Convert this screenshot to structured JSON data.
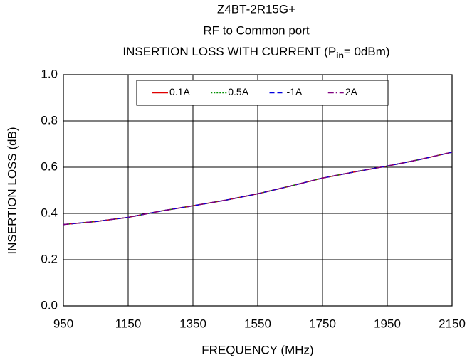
{
  "chart_data": {
    "type": "line",
    "title": [
      "Z4BT-2R15G+",
      "RF to Common port",
      [
        "INSERTION LOSS WITH CURRENT (P",
        "in",
        "= 0dBm)"
      ]
    ],
    "x_label": "FREQUENCY (MHz)",
    "y_label": "INSERTION LOSS (dB)",
    "x": [
      950,
      1050,
      1150,
      1250,
      1350,
      1450,
      1550,
      1650,
      1750,
      1850,
      1950,
      2050,
      2150
    ],
    "series": [
      {
        "name": "0.1A",
        "color": "#e00000",
        "dash": "solid",
        "values": [
          0.352,
          0.365,
          0.383,
          0.41,
          0.433,
          0.457,
          0.485,
          0.518,
          0.553,
          0.58,
          0.605,
          0.633,
          0.665
        ]
      },
      {
        "name": "0.5A",
        "color": "#009000",
        "dash": "dotted",
        "values": [
          0.352,
          0.365,
          0.383,
          0.41,
          0.433,
          0.457,
          0.485,
          0.518,
          0.553,
          0.58,
          0.605,
          0.633,
          0.665
        ]
      },
      {
        "name": "-1A",
        "color": "#0000e0",
        "dash": "dashed",
        "values": [
          0.352,
          0.365,
          0.383,
          0.41,
          0.433,
          0.457,
          0.485,
          0.518,
          0.553,
          0.58,
          0.605,
          0.633,
          0.665
        ]
      },
      {
        "name": "2A",
        "color": "#800080",
        "dash": "dashdot",
        "values": [
          0.352,
          0.365,
          0.383,
          0.41,
          0.433,
          0.457,
          0.485,
          0.518,
          0.553,
          0.58,
          0.605,
          0.633,
          0.665
        ]
      }
    ],
    "xlim": [
      950,
      2150
    ],
    "xticks": [
      950,
      1150,
      1350,
      1550,
      1750,
      1950,
      2150
    ],
    "ylim": [
      0,
      1
    ],
    "yticks": [
      {
        "value": 0,
        "label": "0.0"
      },
      0.2,
      0.4,
      0.6,
      0.8,
      {
        "value": 1,
        "label": "1.0"
      }
    ],
    "grid": true,
    "legend": "top"
  }
}
